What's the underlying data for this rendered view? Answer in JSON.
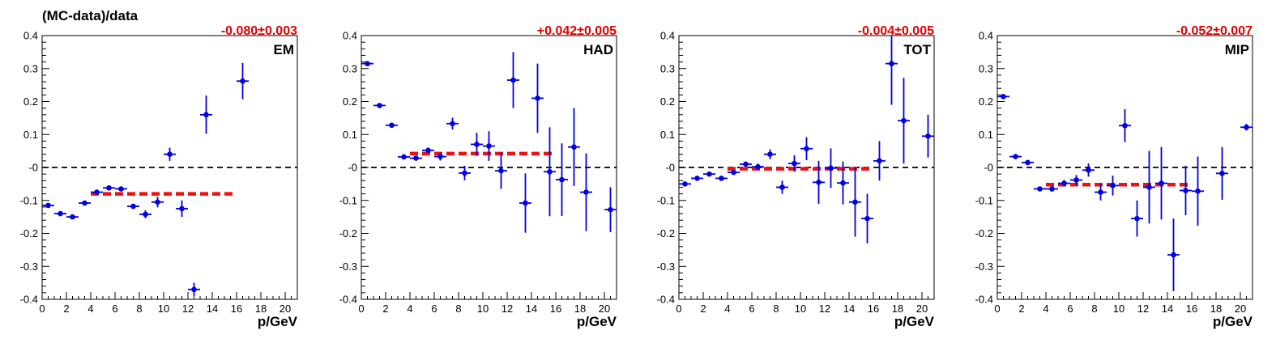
{
  "figure": {
    "ylabel": "(MC-data)/data"
  },
  "colors": {
    "points": "#0000e0",
    "fit": "#ee1111",
    "zero_line": "#000000",
    "fit_value": "#e00000"
  },
  "chart_data": [
    {
      "type": "scatter",
      "panel_label": "EM",
      "fit_value": "-0.080±0.003",
      "xlabel": "p/GeV",
      "xlim": [
        0,
        21
      ],
      "ylim": [
        -0.4,
        0.4
      ],
      "xticks": [
        "0",
        "2",
        "4",
        "6",
        "8",
        "10",
        "12",
        "14",
        "16",
        "18",
        "20"
      ],
      "yticks": [
        "-0.4",
        "-0.3",
        "-0.2",
        "-0.1",
        "-0",
        "0.1",
        "0.2",
        "0.3",
        "0.4"
      ],
      "reference_line": 0,
      "fit_line": {
        "x": [
          4,
          16
        ],
        "y": -0.08
      },
      "series": [
        {
          "x": [
            0.5,
            1.5,
            2.5,
            3.5,
            4.5,
            5.5,
            6.5,
            7.5,
            8.5,
            9.5,
            10.5,
            11.5,
            12.5,
            13.5,
            16.5
          ],
          "y": [
            -0.115,
            -0.14,
            -0.15,
            -0.108,
            -0.075,
            -0.062,
            -0.065,
            -0.118,
            -0.142,
            -0.105,
            0.04,
            -0.125,
            -0.37,
            0.16,
            0.262
          ],
          "yerr": [
            0.006,
            0.006,
            0.006,
            0.006,
            0.006,
            0.006,
            0.006,
            0.008,
            0.012,
            0.016,
            0.02,
            0.025,
            0.02,
            0.058,
            0.055
          ]
        }
      ]
    },
    {
      "type": "scatter",
      "panel_label": "HAD",
      "fit_value": "+0.042±0.005",
      "xlabel": "p/GeV",
      "xlim": [
        0,
        21
      ],
      "ylim": [
        -0.4,
        0.4
      ],
      "xticks": [
        "0",
        "2",
        "4",
        "6",
        "8",
        "10",
        "12",
        "14",
        "16",
        "18",
        "20"
      ],
      "yticks": [
        "-0.4",
        "-0.3",
        "-0.2",
        "-0.1",
        "-0",
        "0.1",
        "0.2",
        "0.3",
        "0.4"
      ],
      "reference_line": 0,
      "fit_line": {
        "x": [
          4,
          16
        ],
        "y": 0.042
      },
      "series": [
        {
          "x": [
            0.5,
            1.5,
            2.5,
            3.5,
            4.5,
            5.5,
            6.5,
            7.5,
            8.5,
            9.5,
            10.5,
            11.5,
            12.5,
            13.5,
            14.5,
            15.5,
            16.5,
            17.5,
            18.5,
            20.5
          ],
          "y": [
            0.315,
            0.188,
            0.128,
            0.032,
            0.028,
            0.052,
            0.033,
            0.133,
            -0.017,
            0.07,
            0.065,
            -0.01,
            0.265,
            -0.108,
            0.21,
            -0.013,
            -0.037,
            0.062,
            -0.075,
            -0.128
          ],
          "yerr": [
            0.005,
            0.005,
            0.005,
            0.005,
            0.005,
            0.008,
            0.012,
            0.018,
            0.022,
            0.035,
            0.045,
            0.055,
            0.085,
            0.09,
            0.105,
            0.135,
            0.11,
            0.118,
            0.118,
            0.068
          ]
        }
      ]
    },
    {
      "type": "scatter",
      "panel_label": "TOT",
      "fit_value": "-0.004±0.005",
      "xlabel": "p/GeV",
      "xlim": [
        0,
        21
      ],
      "ylim": [
        -0.4,
        0.4
      ],
      "xticks": [
        "0",
        "2",
        "4",
        "6",
        "8",
        "10",
        "12",
        "14",
        "16",
        "18",
        "20"
      ],
      "yticks": [
        "-0.4",
        "-0.3",
        "-0.2",
        "-0.1",
        "-0",
        "0.1",
        "0.2",
        "0.3",
        "0.4"
      ],
      "reference_line": 0,
      "fit_line": {
        "x": [
          4,
          16
        ],
        "y": -0.004
      },
      "series": [
        {
          "x": [
            0.5,
            1.5,
            2.5,
            3.5,
            4.5,
            5.5,
            6.5,
            7.5,
            8.5,
            9.5,
            10.5,
            11.5,
            12.5,
            13.5,
            14.5,
            15.5,
            16.5,
            17.5,
            18.5,
            20.5
          ],
          "y": [
            -0.05,
            -0.033,
            -0.02,
            -0.033,
            -0.015,
            0.01,
            0.002,
            0.04,
            -0.06,
            0.012,
            0.057,
            -0.045,
            -0.002,
            -0.047,
            -0.105,
            -0.155,
            0.02,
            0.315,
            0.142,
            0.095
          ],
          "yerr": [
            0.004,
            0.004,
            0.004,
            0.004,
            0.006,
            0.008,
            0.01,
            0.015,
            0.02,
            0.025,
            0.035,
            0.065,
            0.06,
            0.065,
            0.105,
            0.075,
            0.06,
            0.125,
            0.13,
            0.065
          ]
        }
      ]
    },
    {
      "type": "scatter",
      "panel_label": "MIP",
      "fit_value": "-0.052±0.007",
      "xlabel": "p/GeV",
      "xlim": [
        0,
        21
      ],
      "ylim": [
        -0.4,
        0.4
      ],
      "xticks": [
        "0",
        "2",
        "4",
        "6",
        "8",
        "10",
        "12",
        "14",
        "16",
        "18",
        "20"
      ],
      "yticks": [
        "-0.4",
        "-0.3",
        "-0.2",
        "-0.1",
        "-0",
        "0.1",
        "0.2",
        "0.3",
        "0.4"
      ],
      "reference_line": 0,
      "fit_line": {
        "x": [
          4,
          16
        ],
        "y": -0.052
      },
      "series": [
        {
          "x": [
            0.5,
            1.5,
            2.5,
            3.5,
            4.5,
            5.5,
            6.5,
            7.5,
            8.5,
            9.5,
            10.5,
            11.5,
            12.5,
            13.5,
            14.5,
            15.5,
            16.5,
            18.5,
            20.5
          ],
          "y": [
            0.215,
            0.033,
            0.015,
            -0.065,
            -0.065,
            -0.048,
            -0.038,
            -0.008,
            -0.075,
            -0.055,
            0.127,
            -0.155,
            -0.06,
            -0.048,
            -0.265,
            -0.07,
            -0.072,
            -0.018,
            0.122
          ],
          "yerr": [
            0.005,
            0.005,
            0.006,
            0.006,
            0.008,
            0.01,
            0.015,
            0.02,
            0.025,
            0.03,
            0.05,
            0.055,
            0.11,
            0.11,
            0.11,
            0.075,
            0.105,
            0.08,
            0.01
          ]
        }
      ]
    }
  ]
}
